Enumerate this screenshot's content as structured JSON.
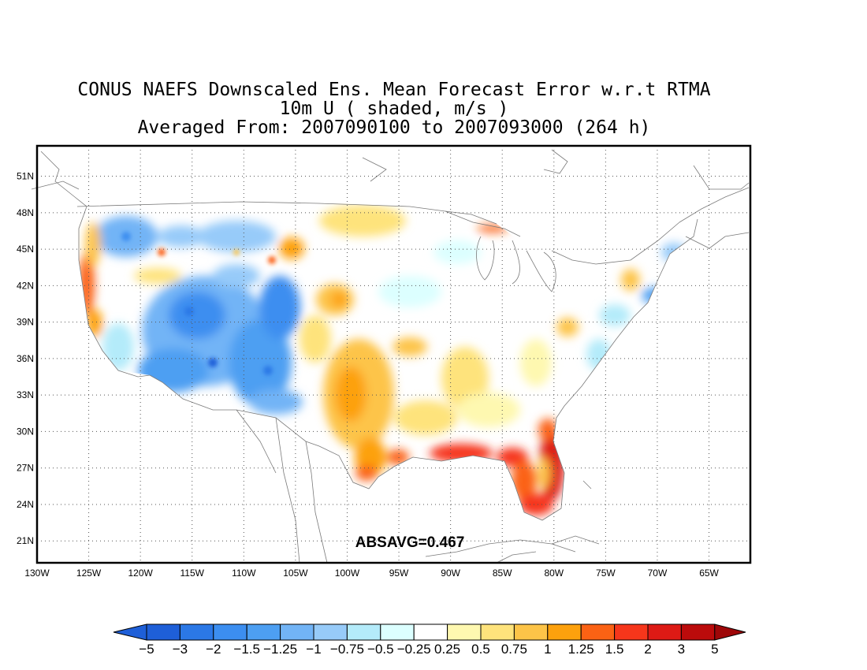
{
  "title": {
    "line1": "CONUS NAEFS Downscaled Ens. Mean Forecast Error w.r.t RTMA",
    "line2": "10m U ( shaded, m/s )",
    "line3": "Averaged From: 2007090100 to 2007093000 (264 h)"
  },
  "annotation": "ABSAVG=0.467",
  "axes": {
    "lon_ticks": [
      "130W",
      "125W",
      "120W",
      "115W",
      "110W",
      "105W",
      "100W",
      "95W",
      "90W",
      "85W",
      "80W",
      "75W",
      "70W",
      "65W"
    ],
    "lat_ticks": [
      "51N",
      "48N",
      "45N",
      "42N",
      "39N",
      "36N",
      "33N",
      "30N",
      "27N",
      "24N",
      "21N"
    ],
    "lon_range": [
      -130,
      -61
    ],
    "lat_range": [
      19.2,
      53.5
    ],
    "grid": "dotted"
  },
  "colorbar": {
    "labels": [
      "-5",
      "-3",
      "-2",
      "-1.5",
      "-1.25",
      "-1",
      "-0.75",
      "-0.5",
      "-0.25",
      "0.25",
      "0.5",
      "0.75",
      "1",
      "1.25",
      "1.5",
      "2",
      "3",
      "5"
    ],
    "colors": [
      "#1e5fd8",
      "#2b78e6",
      "#3c8ef0",
      "#4d9ff2",
      "#72b4f6",
      "#97cbf9",
      "#b4ebfa",
      "#dcffff",
      "#ffffff",
      "#fef8b0",
      "#fee37c",
      "#fdc448",
      "#fda10d",
      "#fb6214",
      "#f6361b",
      "#dd1a15",
      "#bb0b0b",
      "#9e0708"
    ],
    "left_arrow_color": "#1e5fd8",
    "right_arrow_color": "#9e0708"
  }
}
